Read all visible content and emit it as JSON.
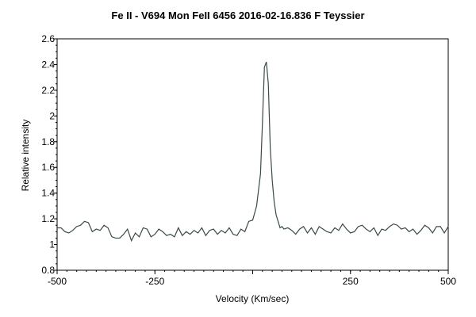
{
  "chart_data": {
    "type": "line",
    "title": "Fe II - V694 Mon  FeII 6456  2016-02-16.836    F Teyssier",
    "xlabel": "Velocity (Km/sec)",
    "ylabel": "Relative intensity",
    "xlim": [
      -500,
      500
    ],
    "ylim": [
      0.8,
      2.6
    ],
    "x_ticks": [
      -500,
      -250,
      0,
      250,
      500
    ],
    "x_tick_labels": [
      "-500",
      "-250",
      "",
      "250",
      "500"
    ],
    "y_ticks": [
      0.8,
      1,
      1.2,
      1.4,
      1.6,
      1.8,
      2,
      2.2,
      2.4,
      2.6
    ],
    "y_tick_labels": [
      "0.8",
      "1",
      "1.2",
      "1.4",
      "1.6",
      "1.8",
      "2",
      "2.2",
      "2.4",
      "2.6"
    ],
    "grid": false,
    "line_color": "#3a4a44",
    "series": [
      {
        "x": [
          -500,
          -490,
          -480,
          -470,
          -460,
          -450,
          -440,
          -430,
          -420,
          -410,
          -400,
          -390,
          -380,
          -370,
          -360,
          -350,
          -340,
          -330,
          -320,
          -310,
          -300,
          -290,
          -280,
          -270,
          -260,
          -250,
          -240,
          -230,
          -220,
          -210,
          -200,
          -190,
          -180,
          -170,
          -160,
          -150,
          -140,
          -130,
          -120,
          -110,
          -100,
          -90,
          -80,
          -70,
          -60,
          -50,
          -40,
          -30,
          -20,
          -10,
          0,
          10,
          20,
          25,
          30,
          35,
          40,
          45,
          50,
          55,
          60,
          65,
          70,
          75,
          80,
          90,
          100,
          110,
          120,
          130,
          140,
          150,
          160,
          170,
          180,
          190,
          200,
          210,
          220,
          230,
          240,
          250,
          260,
          270,
          280,
          290,
          300,
          310,
          320,
          330,
          340,
          350,
          360,
          370,
          380,
          390,
          400,
          410,
          420,
          430,
          440,
          450,
          460,
          470,
          480,
          490,
          500
        ],
        "y": [
          1.13,
          1.13,
          1.1,
          1.09,
          1.11,
          1.14,
          1.15,
          1.18,
          1.17,
          1.1,
          1.12,
          1.11,
          1.15,
          1.13,
          1.06,
          1.05,
          1.05,
          1.08,
          1.12,
          1.03,
          1.09,
          1.06,
          1.13,
          1.12,
          1.06,
          1.08,
          1.12,
          1.1,
          1.07,
          1.08,
          1.06,
          1.13,
          1.07,
          1.1,
          1.08,
          1.11,
          1.09,
          1.13,
          1.07,
          1.11,
          1.12,
          1.08,
          1.11,
          1.09,
          1.13,
          1.08,
          1.07,
          1.12,
          1.1,
          1.18,
          1.19,
          1.3,
          1.55,
          1.95,
          2.38,
          2.42,
          2.25,
          1.75,
          1.5,
          1.33,
          1.23,
          1.18,
          1.13,
          1.14,
          1.12,
          1.13,
          1.11,
          1.08,
          1.12,
          1.14,
          1.09,
          1.13,
          1.08,
          1.14,
          1.12,
          1.1,
          1.09,
          1.13,
          1.11,
          1.16,
          1.12,
          1.09,
          1.1,
          1.14,
          1.15,
          1.12,
          1.1,
          1.13,
          1.07,
          1.12,
          1.11,
          1.14,
          1.16,
          1.15,
          1.12,
          1.13,
          1.1,
          1.12,
          1.08,
          1.11,
          1.15,
          1.13,
          1.09,
          1.14,
          1.14,
          1.09,
          1.14
        ]
      }
    ]
  }
}
